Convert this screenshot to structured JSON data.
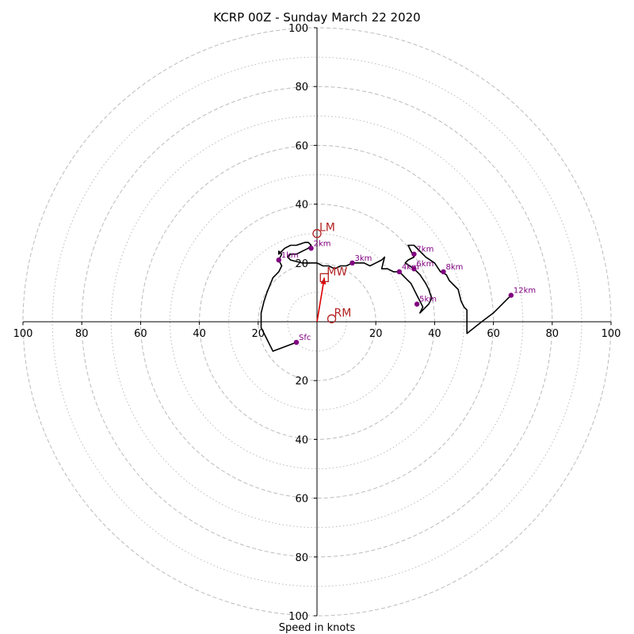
{
  "chart_data": {
    "type": "hodograph",
    "title": "KCRP 00Z - Sunday March 22 2020",
    "xlabel": "Speed in knots",
    "range": [
      -100,
      100
    ],
    "rings_major": [
      20,
      40,
      60,
      80,
      100
    ],
    "rings_minor": [
      10,
      30,
      50,
      70,
      90
    ],
    "x_tick_labels": [
      "100",
      "80",
      "60",
      "40",
      "20",
      "",
      "20",
      "40",
      "60",
      "80",
      "100"
    ],
    "y_tick_labels": [
      "100",
      "80",
      "60",
      "40",
      "20",
      "",
      "20",
      "40",
      "60",
      "80",
      "100"
    ],
    "trace": [
      [
        -7,
        -7
      ],
      [
        -15,
        -10
      ],
      [
        -19,
        -2
      ],
      [
        -19,
        3
      ],
      [
        -18,
        7
      ],
      [
        -17,
        10
      ],
      [
        -15,
        15
      ],
      [
        -13,
        17
      ],
      [
        -12,
        19
      ],
      [
        -13,
        21
      ],
      [
        -12,
        23
      ],
      [
        -13,
        24
      ],
      [
        -13,
        23
      ],
      [
        -12,
        24
      ],
      [
        -11,
        25
      ],
      [
        -9,
        26
      ],
      [
        -7,
        26
      ],
      [
        -4,
        27
      ],
      [
        -3,
        27
      ],
      [
        -2,
        26
      ],
      [
        -3,
        25
      ],
      [
        -7,
        23
      ],
      [
        -9,
        23
      ],
      [
        -10,
        22
      ],
      [
        -9,
        21
      ],
      [
        -5,
        20
      ],
      [
        0,
        20
      ],
      [
        2,
        19
      ],
      [
        4,
        19
      ],
      [
        6,
        18
      ],
      [
        8,
        19
      ],
      [
        10,
        19
      ],
      [
        12,
        20
      ],
      [
        16,
        20
      ],
      [
        18,
        19
      ],
      [
        20,
        20
      ],
      [
        22,
        21
      ],
      [
        23,
        22
      ],
      [
        22,
        18
      ],
      [
        24,
        18
      ],
      [
        26,
        17
      ],
      [
        28,
        17
      ],
      [
        30,
        15
      ],
      [
        32,
        13
      ],
      [
        33,
        11
      ],
      [
        34,
        9
      ],
      [
        35,
        7
      ],
      [
        36,
        5
      ],
      [
        35,
        3
      ],
      [
        36,
        4
      ],
      [
        38,
        6
      ],
      [
        39,
        8
      ],
      [
        38,
        11
      ],
      [
        37,
        13
      ],
      [
        35,
        16
      ],
      [
        33,
        18
      ],
      [
        30,
        20
      ],
      [
        31,
        21
      ],
      [
        33,
        22
      ],
      [
        32,
        24
      ],
      [
        31,
        26
      ],
      [
        33,
        26
      ],
      [
        35,
        24
      ],
      [
        37,
        22
      ],
      [
        40,
        20
      ],
      [
        42,
        17
      ],
      [
        44,
        16
      ],
      [
        45,
        14
      ],
      [
        47,
        12
      ],
      [
        48,
        11
      ],
      [
        49,
        7
      ],
      [
        50,
        5
      ],
      [
        51,
        4
      ],
      [
        51,
        -4
      ],
      [
        56,
        0
      ],
      [
        60,
        3
      ],
      [
        66,
        9
      ]
    ],
    "points": [
      {
        "label": "Sfc",
        "u": -7,
        "v": -7
      },
      {
        "label": "1km",
        "u": -13,
        "v": 21
      },
      {
        "label": "2km",
        "u": -2,
        "v": 25
      },
      {
        "label": "3km",
        "u": 12,
        "v": 20
      },
      {
        "label": "4km",
        "u": 28,
        "v": 17
      },
      {
        "label": "5km",
        "u": 34,
        "v": 6
      },
      {
        "label": "6km",
        "u": 33,
        "v": 18
      },
      {
        "label": "7km",
        "u": 33,
        "v": 23
      },
      {
        "label": "8km",
        "u": 43,
        "v": 17
      },
      {
        "label": "12km",
        "u": 66,
        "v": 9
      }
    ],
    "markers": [
      {
        "label": "LM",
        "shape": "circle",
        "u": 0,
        "v": 30
      },
      {
        "label": "RM",
        "shape": "circle",
        "u": 5,
        "v": 1
      },
      {
        "label": "MW",
        "shape": "square",
        "u": 2.5,
        "v": 15
      }
    ],
    "mean_wind_vector": {
      "u": 2.5,
      "v": 15
    },
    "grid": true,
    "legend": "none"
  },
  "colors": {
    "trace": "#000000",
    "points": "#800080",
    "markers": "#b22222",
    "vector": "#dd0000",
    "rings": "#bbbbbb"
  }
}
